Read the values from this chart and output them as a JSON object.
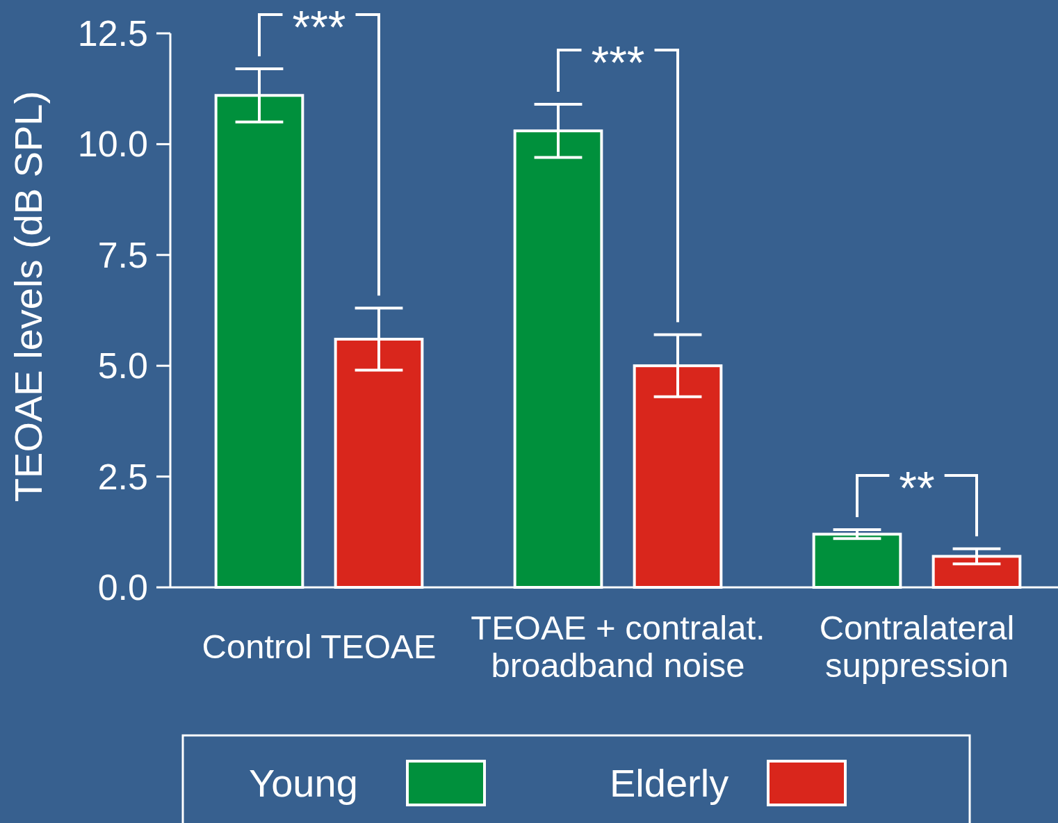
{
  "chart_data": {
    "type": "bar",
    "ylabel": "TEOAE levels (dB SPL)",
    "categories": [
      "Control TEOAE",
      "TEOAE + contralat. broadband noise",
      "Contralateral suppression"
    ],
    "series": [
      {
        "name": "Young",
        "color": "#00903c",
        "values": [
          11.1,
          10.3,
          1.2
        ],
        "errors": [
          0.6,
          0.6,
          0.1
        ]
      },
      {
        "name": "Elderly",
        "color": "#d9261c",
        "values": [
          5.6,
          5.0,
          0.7
        ],
        "errors": [
          0.7,
          0.7,
          0.17
        ]
      }
    ],
    "ylim": [
      0,
      12.5
    ],
    "yticks": [
      {
        "value": 0,
        "label": "0.0"
      },
      2.5,
      {
        "value": 5,
        "label": "5.0"
      },
      7.5,
      {
        "value": 10,
        "label": "10.0"
      },
      12.5
    ],
    "legend": "bottom",
    "annotations": [
      "***",
      "***",
      "**"
    ]
  }
}
